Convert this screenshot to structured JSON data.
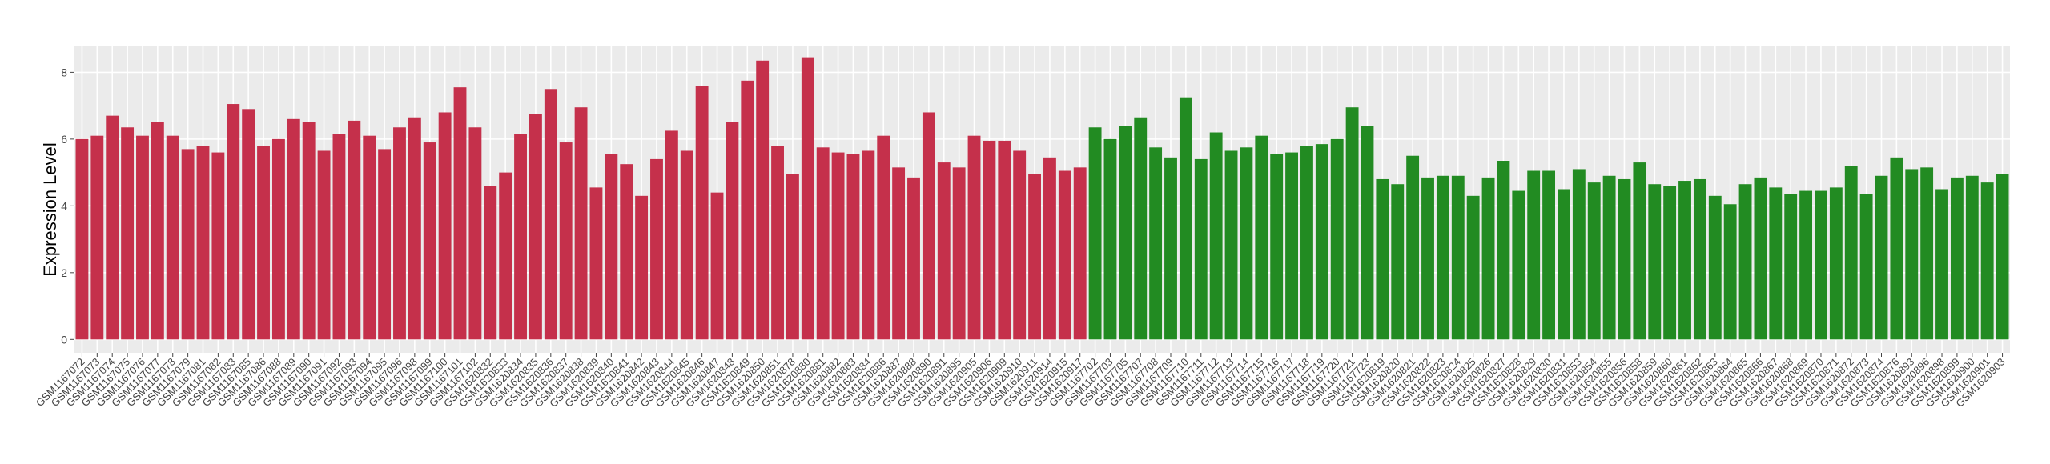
{
  "chart_data": {
    "type": "bar",
    "y_label": "Expression Level",
    "ylim": [
      -0.4,
      8.8
    ],
    "yticks": [
      0,
      2,
      4,
      6,
      8
    ],
    "grid": true,
    "groups": [
      {
        "color": "#c5304b",
        "categories": [
          "GSM1167072",
          "GSM1167073",
          "GSM1167074",
          "GSM1167075",
          "GSM1167076",
          "GSM1167077",
          "GSM1167078",
          "GSM1167079",
          "GSM1167081",
          "GSM1167082",
          "GSM1167083",
          "GSM1167085",
          "GSM1167086",
          "GSM1167088",
          "GSM1167089",
          "GSM1167090",
          "GSM1167091",
          "GSM1167092",
          "GSM1167093",
          "GSM1167094",
          "GSM1167095",
          "GSM1167096",
          "GSM1167098",
          "GSM1167099",
          "GSM1167100",
          "GSM1167101",
          "GSM1167102",
          "GSM1620832",
          "GSM1620833",
          "GSM1620834",
          "GSM1620835",
          "GSM1620836",
          "GSM1620837",
          "GSM1620838",
          "GSM1620839",
          "GSM1620840",
          "GSM1620841",
          "GSM1620842",
          "GSM1620843",
          "GSM1620844",
          "GSM1620845",
          "GSM1620846",
          "GSM1620847",
          "GSM1620848",
          "GSM1620849",
          "GSM1620850",
          "GSM1620851",
          "GSM1620878",
          "GSM1620880",
          "GSM1620881",
          "GSM1620882",
          "GSM1620883",
          "GSM1620884",
          "GSM1620886",
          "GSM1620887",
          "GSM1620888",
          "GSM1620890",
          "GSM1620891",
          "GSM1620895",
          "GSM1620905",
          "GSM1620906",
          "GSM1620909",
          "GSM1620910",
          "GSM1620911",
          "GSM1620914",
          "GSM1620915",
          "GSM1620917"
        ],
        "values": [
          6.0,
          6.1,
          6.7,
          6.35,
          6.1,
          6.5,
          6.1,
          5.7,
          5.8,
          5.6,
          7.05,
          6.9,
          5.8,
          6.0,
          6.6,
          6.5,
          5.65,
          6.15,
          6.55,
          6.1,
          5.7,
          6.35,
          6.65,
          5.9,
          6.8,
          7.55,
          6.35,
          4.6,
          5.0,
          6.15,
          6.75,
          7.5,
          5.9,
          6.95,
          4.55,
          5.55,
          5.25,
          4.3,
          5.4,
          6.25,
          5.65,
          7.6,
          4.4,
          6.5,
          7.75,
          8.35,
          5.8,
          4.95,
          8.45,
          5.75,
          5.6,
          5.55,
          5.65,
          6.1,
          5.15,
          4.85,
          6.8,
          5.3,
          5.15,
          6.1,
          5.95,
          5.95,
          5.65,
          4.95,
          5.45,
          5.05,
          5.15
        ]
      },
      {
        "color": "#228b22",
        "categories": [
          "GSM1167702",
          "GSM1167703",
          "GSM1167705",
          "GSM1167707",
          "GSM1167708",
          "GSM1167709",
          "GSM1167710",
          "GSM1167711",
          "GSM1167712",
          "GSM1167713",
          "GSM1167714",
          "GSM1167715",
          "GSM1167716",
          "GSM1167717",
          "GSM1167718",
          "GSM1167719",
          "GSM1167720",
          "GSM1167721",
          "GSM1167723",
          "GSM1620819",
          "GSM1620820",
          "GSM1620821",
          "GSM1620822",
          "GSM1620823",
          "GSM1620824",
          "GSM1620825",
          "GSM1620826",
          "GSM1620827",
          "GSM1620828",
          "GSM1620829",
          "GSM1620830",
          "GSM1620831",
          "GSM1620853",
          "GSM1620854",
          "GSM1620855",
          "GSM1620856",
          "GSM1620858",
          "GSM1620859",
          "GSM1620860",
          "GSM1620861",
          "GSM1620862",
          "GSM1620863",
          "GSM1620864",
          "GSM1620865",
          "GSM1620866",
          "GSM1620867",
          "GSM1620868",
          "GSM1620869",
          "GSM1620870",
          "GSM1620871",
          "GSM1620872",
          "GSM1620873",
          "GSM1620874",
          "GSM1620876",
          "GSM1620893",
          "GSM1620896",
          "GSM1620898",
          "GSM1620899",
          "GSM1620900",
          "GSM1620901",
          "GSM1620903"
        ],
        "values": [
          6.35,
          6.0,
          6.4,
          6.65,
          5.75,
          5.45,
          7.25,
          5.4,
          6.2,
          5.65,
          5.75,
          6.1,
          5.55,
          5.6,
          5.8,
          5.85,
          6.0,
          6.95,
          6.4,
          4.8,
          4.65,
          5.5,
          4.85,
          4.9,
          4.9,
          4.3,
          4.85,
          5.35,
          4.45,
          5.05,
          5.05,
          4.5,
          5.1,
          4.7,
          4.9,
          4.8,
          5.3,
          4.65,
          4.6,
          4.75,
          4.8,
          4.3,
          4.05,
          4.65,
          4.85,
          4.55,
          4.35,
          4.45,
          4.45,
          4.55,
          5.2,
          4.35,
          4.9,
          5.45,
          5.1,
          5.15,
          4.5,
          4.85,
          4.9,
          4.7,
          4.95
        ]
      }
    ]
  }
}
